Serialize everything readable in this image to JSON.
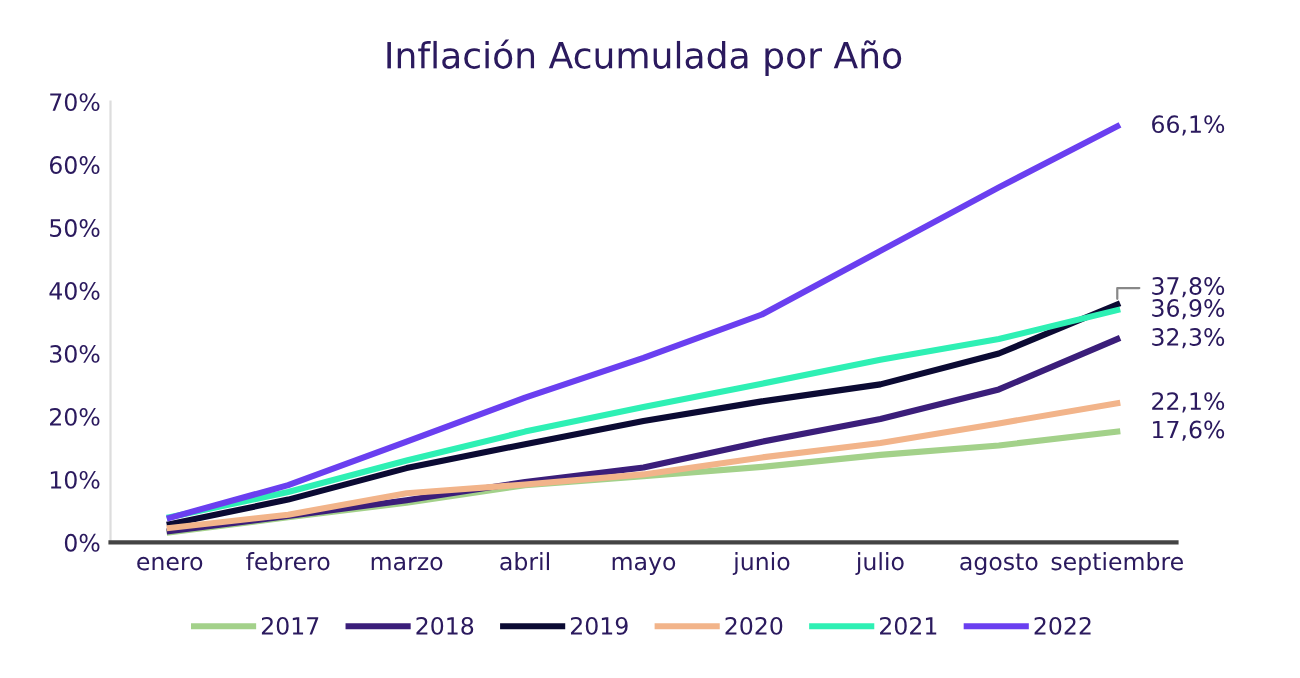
{
  "chart_data": {
    "type": "line",
    "title": "Inflación Acumulada por Año",
    "categories": [
      "enero",
      "febrero",
      "marzo",
      "abril",
      "mayo",
      "junio",
      "julio",
      "agosto",
      "septiembre"
    ],
    "series": [
      {
        "name": "2017",
        "color": "#a3d18a",
        "values": [
          1.6,
          4.0,
          6.3,
          9.1,
          10.5,
          12.0,
          13.9,
          15.4,
          17.6
        ],
        "value_labels": [
          null,
          null,
          null,
          null,
          null,
          null,
          null,
          null,
          "17,6%"
        ]
      },
      {
        "name": "2018",
        "color": "#3b1e7a",
        "values": [
          1.8,
          4.2,
          6.7,
          9.6,
          11.9,
          16.0,
          19.6,
          24.3,
          32.3
        ],
        "value_labels": [
          null,
          null,
          null,
          null,
          null,
          null,
          null,
          null,
          "32,3%"
        ]
      },
      {
        "name": "2019",
        "color": "#0b0a33",
        "values": [
          2.9,
          6.8,
          11.8,
          15.6,
          19.3,
          22.4,
          25.1,
          30.0,
          37.8
        ],
        "value_labels": [
          null,
          null,
          null,
          null,
          null,
          null,
          null,
          null,
          "37,8%"
        ]
      },
      {
        "name": "2020",
        "color": "#f2b48a",
        "values": [
          2.3,
          4.4,
          7.8,
          9.2,
          10.8,
          13.5,
          15.8,
          18.9,
          22.1
        ],
        "value_labels": [
          null,
          null,
          null,
          null,
          null,
          null,
          null,
          null,
          "22,1%"
        ]
      },
      {
        "name": "2021",
        "color": "#2ef0b4",
        "values": [
          4.0,
          8.0,
          13.0,
          17.6,
          21.5,
          25.2,
          29.0,
          32.3,
          36.9
        ],
        "value_labels": [
          null,
          null,
          null,
          null,
          null,
          null,
          null,
          null,
          "36,9%"
        ]
      },
      {
        "name": "2022",
        "color": "#6a3ff0",
        "values": [
          3.9,
          9.1,
          16.0,
          23.0,
          29.3,
          36.2,
          46.3,
          56.4,
          66.1
        ],
        "value_labels": [
          null,
          null,
          null,
          null,
          null,
          null,
          null,
          null,
          "66,1%"
        ]
      }
    ],
    "ylim": [
      0,
      70
    ],
    "yticks": [
      {
        "value": 0,
        "label": "0%"
      },
      {
        "value": 10,
        "label": "10%"
      },
      {
        "value": 20,
        "label": "20%"
      },
      {
        "value": 30,
        "label": "30%"
      },
      {
        "value": 40,
        "label": "40%"
      },
      {
        "value": 50,
        "label": "50%"
      },
      {
        "value": 60,
        "label": "60%"
      },
      {
        "value": 70,
        "label": "70%"
      }
    ],
    "grid": false,
    "legend": "bottom",
    "marker": "none",
    "line_style": "solid"
  }
}
